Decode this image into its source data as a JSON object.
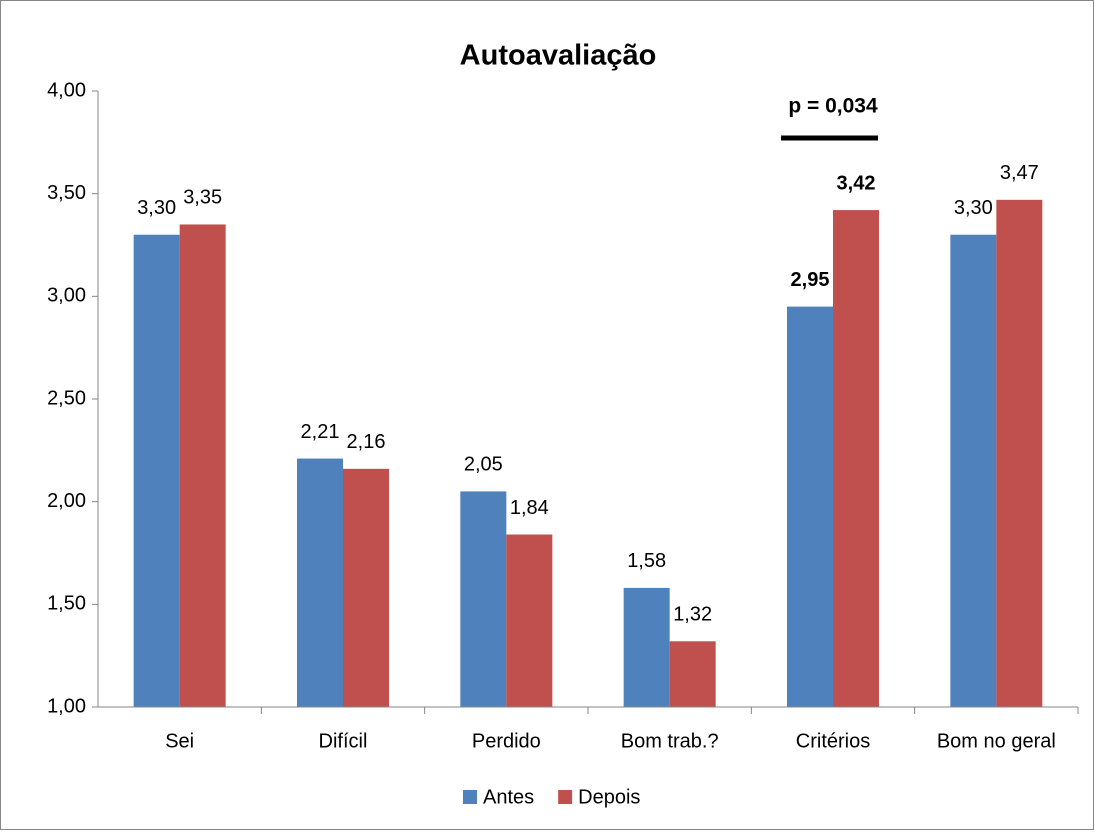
{
  "chart_data": {
    "type": "bar",
    "title": "Autoavaliação",
    "categories": [
      "Sei",
      "Difícil",
      "Perdido",
      "Bom trab.?",
      "Critérios",
      "Bom no geral"
    ],
    "series": [
      {
        "name": "Antes",
        "color": "#4f81bd",
        "values": [
          3.3,
          2.21,
          2.05,
          1.58,
          2.95,
          3.3
        ],
        "value_labels": [
          "3,30",
          "2,21",
          "2,05",
          "1,58",
          "2,95",
          "3,30"
        ]
      },
      {
        "name": "Depois",
        "color": "#c0504d",
        "values": [
          3.35,
          2.16,
          1.84,
          1.32,
          3.42,
          3.47
        ],
        "value_labels": [
          "3,35",
          "2,16",
          "1,84",
          "1,32",
          "3,42",
          "3,47"
        ]
      }
    ],
    "ylim": [
      1,
      4
    ],
    "yticks": [
      {
        "value": 1,
        "label": "1,00"
      },
      {
        "value": 1.5,
        "label": "1,50"
      },
      {
        "value": 2,
        "label": "2,00"
      },
      {
        "value": 2.5,
        "label": "2,50"
      },
      {
        "value": 3,
        "label": "3,00"
      },
      {
        "value": 3.5,
        "label": "3,50"
      },
      {
        "value": 4,
        "label": "4,00"
      }
    ],
    "grid": false,
    "legend": "bottom",
    "annotation": {
      "text": "p = 0,034",
      "x": "Critérios"
    }
  }
}
